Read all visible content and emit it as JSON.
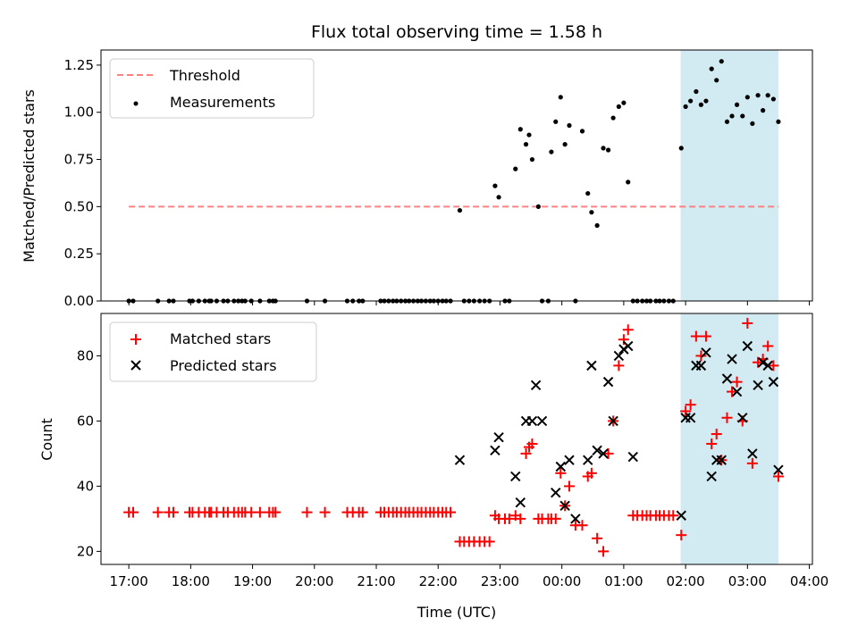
{
  "chart_data": [
    {
      "type": "scatter",
      "title": "Flux total observing time = 1.58 h",
      "xlabel": "",
      "ylabel": "Matched/Predicted stars",
      "xlim_hours": [
        16.55,
        28.05
      ],
      "ylim": [
        0,
        1.33
      ],
      "yticks": [
        0.0,
        0.25,
        0.5,
        0.75,
        1.0,
        1.25
      ],
      "ytick_labels": [
        "0.00",
        "0.25",
        "0.50",
        "0.75",
        "1.00",
        "1.25"
      ],
      "shaded_span_hours": [
        25.92,
        27.5
      ],
      "shade_color": "#add8e6",
      "legend": [
        "Threshold",
        "Measurements"
      ],
      "legend_position": "upper-left",
      "threshold": {
        "value": 0.5,
        "x_range_hours": [
          17.0,
          27.5
        ],
        "color": "#ff8080"
      },
      "measurements": {
        "color": "#000000",
        "x_hours": [
          17.0,
          17.07,
          17.47,
          17.65,
          17.72,
          17.98,
          18.03,
          18.13,
          18.23,
          18.3,
          18.33,
          18.42,
          18.53,
          18.6,
          18.7,
          18.77,
          18.83,
          18.88,
          18.98,
          19.12,
          19.27,
          19.33,
          19.37,
          19.88,
          20.17,
          20.53,
          20.62,
          20.72,
          20.78,
          21.07,
          21.13,
          21.2,
          21.27,
          21.33,
          21.4,
          21.47,
          21.53,
          21.6,
          21.67,
          21.73,
          21.8,
          21.87,
          21.93,
          22.0,
          22.07,
          22.13,
          22.2,
          22.35,
          22.42,
          22.5,
          22.58,
          22.67,
          22.75,
          22.83,
          22.92,
          22.98,
          23.08,
          23.15,
          23.25,
          23.33,
          23.42,
          23.47,
          23.52,
          23.62,
          23.68,
          23.78,
          23.83,
          23.9,
          23.98,
          24.05,
          24.12,
          24.22,
          24.33,
          24.42,
          24.48,
          24.57,
          24.67,
          24.75,
          24.83,
          24.92,
          25.0,
          25.07,
          25.15,
          25.22,
          25.3,
          25.37,
          25.43,
          25.52,
          25.58,
          25.65,
          25.73,
          25.8,
          25.93,
          26.0,
          26.08,
          26.17,
          26.25,
          26.33,
          26.42,
          26.5,
          26.58,
          26.67,
          26.75,
          26.83,
          26.92,
          27.0,
          27.08,
          27.17,
          27.25,
          27.33,
          27.42,
          27.5
        ],
        "ratio": [
          0.0,
          0.0,
          0.0,
          0.0,
          0.0,
          0.0,
          0.0,
          0.0,
          0.0,
          0.0,
          0.0,
          0.0,
          0.0,
          0.0,
          0.0,
          0.0,
          0.0,
          0.0,
          0.0,
          0.0,
          0.0,
          0.0,
          0.0,
          0.0,
          0.0,
          0.0,
          0.0,
          0.0,
          0.0,
          0.0,
          0.0,
          0.0,
          0.0,
          0.0,
          0.0,
          0.0,
          0.0,
          0.0,
          0.0,
          0.0,
          0.0,
          0.0,
          0.0,
          0.0,
          0.0,
          0.0,
          0.0,
          0.48,
          0.0,
          0.0,
          0.0,
          0.0,
          0.0,
          0.0,
          0.61,
          0.55,
          0.0,
          0.0,
          0.7,
          0.91,
          0.83,
          0.88,
          0.75,
          0.5,
          0.0,
          0.0,
          0.79,
          0.95,
          1.08,
          0.83,
          0.93,
          0.0,
          0.9,
          0.57,
          0.47,
          0.4,
          0.81,
          0.8,
          0.97,
          1.03,
          1.05,
          0.63,
          0.0,
          0.0,
          0.0,
          0.0,
          0.0,
          0.0,
          0.0,
          0.0,
          0.0,
          0.0,
          0.81,
          1.03,
          1.06,
          1.11,
          1.04,
          1.06,
          1.23,
          1.17,
          1.27,
          0.95,
          0.98,
          1.04,
          0.98,
          1.08,
          0.94,
          1.09,
          1.01,
          1.09,
          1.07,
          0.95
        ]
      }
    },
    {
      "type": "scatter",
      "title": "",
      "xlabel": "Time (UTC)",
      "ylabel": "Count",
      "xlim_hours": [
        16.55,
        28.05
      ],
      "ylim": [
        16,
        93
      ],
      "yticks": [
        20,
        40,
        60,
        80
      ],
      "ytick_labels": [
        "20",
        "40",
        "60",
        "80"
      ],
      "xticks_hours": [
        17,
        18,
        19,
        20,
        21,
        22,
        23,
        24,
        25,
        26,
        27,
        28
      ],
      "xtick_labels": [
        "17:00",
        "18:00",
        "19:00",
        "20:00",
        "21:00",
        "22:00",
        "23:00",
        "00:00",
        "01:00",
        "02:00",
        "03:00",
        "04:00"
      ],
      "shaded_span_hours": [
        25.92,
        27.5
      ],
      "shade_color": "#add8e6",
      "legend": [
        "Matched stars",
        "Predicted stars"
      ],
      "legend_position": "upper-left",
      "series": [
        {
          "name": "Matched stars",
          "marker": "+",
          "color": "#ff0000",
          "x_hours": [
            17.0,
            17.07,
            17.47,
            17.65,
            17.72,
            17.98,
            18.03,
            18.13,
            18.23,
            18.3,
            18.33,
            18.42,
            18.53,
            18.6,
            18.7,
            18.77,
            18.83,
            18.88,
            18.98,
            19.12,
            19.27,
            19.33,
            19.37,
            19.88,
            20.17,
            20.53,
            20.62,
            20.72,
            20.78,
            21.07,
            21.13,
            21.2,
            21.27,
            21.33,
            21.4,
            21.47,
            21.53,
            21.6,
            21.67,
            21.73,
            21.8,
            21.87,
            21.93,
            22.0,
            22.07,
            22.13,
            22.2,
            22.35,
            22.42,
            22.5,
            22.58,
            22.67,
            22.75,
            22.83,
            22.92,
            22.98,
            23.08,
            23.15,
            23.25,
            23.33,
            23.42,
            23.47,
            23.52,
            23.62,
            23.68,
            23.78,
            23.83,
            23.9,
            23.98,
            24.05,
            24.12,
            24.22,
            24.33,
            24.42,
            24.48,
            24.57,
            24.67,
            24.75,
            24.83,
            24.92,
            25.0,
            25.07,
            25.15,
            25.22,
            25.3,
            25.37,
            25.43,
            25.52,
            25.58,
            25.65,
            25.73,
            25.8,
            25.93,
            26.0,
            26.08,
            26.17,
            26.25,
            26.33,
            26.42,
            26.5,
            26.58,
            26.67,
            26.75,
            26.83,
            26.92,
            27.0,
            27.08,
            27.17,
            27.25,
            27.33,
            27.42,
            27.5
          ],
          "values": [
            32,
            32,
            32,
            32,
            32,
            32,
            32,
            32,
            32,
            32,
            32,
            32,
            32,
            32,
            32,
            32,
            32,
            32,
            32,
            32,
            32,
            32,
            32,
            32,
            32,
            32,
            32,
            32,
            32,
            32,
            32,
            32,
            32,
            32,
            32,
            32,
            32,
            32,
            32,
            32,
            32,
            32,
            32,
            32,
            32,
            32,
            32,
            23,
            23,
            23,
            23,
            23,
            23,
            23,
            31,
            30,
            30,
            30,
            31,
            30,
            50,
            52,
            53,
            30,
            30,
            30,
            30,
            30,
            44,
            34,
            40,
            28,
            28,
            43,
            44,
            24,
            20,
            50,
            60,
            77,
            85,
            88,
            31,
            31,
            31,
            31,
            31,
            31,
            31,
            31,
            31,
            31,
            25,
            63,
            65,
            86,
            80,
            86,
            53,
            56,
            48,
            61,
            69,
            72,
            60,
            90,
            47,
            78,
            79,
            83,
            77,
            43
          ]
        },
        {
          "name": "Predicted stars",
          "marker": "x",
          "color": "#000000",
          "x_hours": [
            22.35,
            22.92,
            22.98,
            23.25,
            23.33,
            23.42,
            23.52,
            23.58,
            23.68,
            23.9,
            23.98,
            24.05,
            24.12,
            24.22,
            24.42,
            24.48,
            24.57,
            24.67,
            24.75,
            24.83,
            24.92,
            25.0,
            25.07,
            25.15,
            25.93,
            26.0,
            26.08,
            26.17,
            26.25,
            26.33,
            26.42,
            26.5,
            26.58,
            26.67,
            26.75,
            26.83,
            26.92,
            27.0,
            27.08,
            27.17,
            27.25,
            27.33,
            27.42,
            27.5
          ],
          "values": [
            48,
            51,
            55,
            43,
            35,
            60,
            60,
            71,
            60,
            38,
            46,
            34,
            48,
            30,
            48,
            77,
            51,
            50,
            72,
            60,
            80,
            82,
            83,
            49,
            31,
            61,
            61,
            77,
            77,
            81,
            43,
            48,
            48,
            73,
            79,
            69,
            61,
            83,
            50,
            71,
            78,
            77,
            72,
            45
          ]
        }
      ]
    }
  ]
}
